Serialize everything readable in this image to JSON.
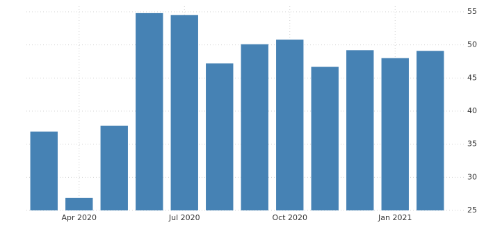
{
  "chart_data": {
    "type": "bar",
    "categories": [
      null,
      "Apr 2020",
      null,
      null,
      "Jul 2020",
      null,
      null,
      "Oct 2020",
      null,
      null,
      "Jan 2021",
      null
    ],
    "values": [
      36.9,
      26.9,
      37.8,
      54.8,
      54.5,
      47.2,
      50.1,
      50.8,
      46.7,
      49.2,
      48.0,
      49.1
    ],
    "color": "#4682b4",
    "ylim": [
      25,
      55
    ],
    "yticks": [
      25,
      30,
      35,
      40,
      45,
      50,
      55
    ],
    "grid": true
  }
}
